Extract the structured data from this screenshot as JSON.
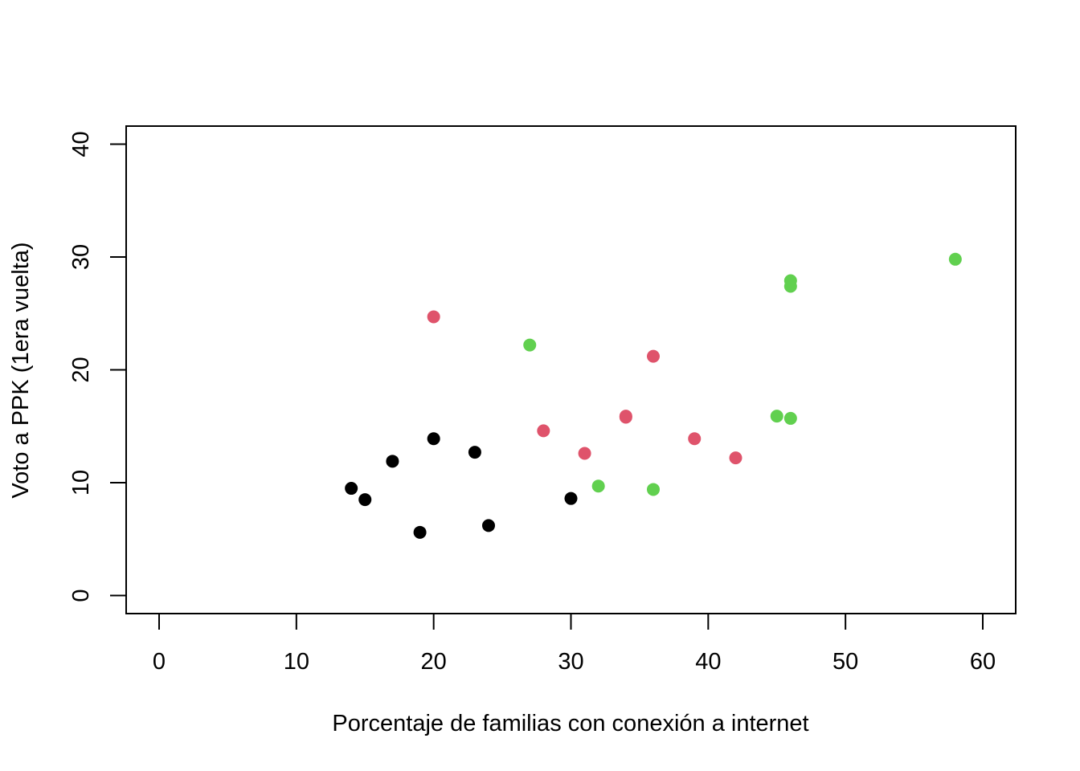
{
  "chart_data": {
    "type": "scatter",
    "title": "",
    "xlabel": "Porcentaje de familias con conexión a internet",
    "ylabel": "Voto a PPK (1era vuelta)",
    "xlim": [
      -2.4,
      62.4
    ],
    "ylim": [
      -1.6,
      41.6
    ],
    "x_ticks": [
      0,
      10,
      20,
      30,
      40,
      50,
      60
    ],
    "y_ticks": [
      0,
      10,
      20,
      30,
      40
    ],
    "grid": false,
    "legend": "none",
    "colors": [
      "#000000",
      "#DF536B",
      "#61D04F"
    ],
    "series": [
      {
        "color": "#000000",
        "points": [
          {
            "x": 14,
            "y": 9.5
          },
          {
            "x": 15,
            "y": 8.5
          },
          {
            "x": 17,
            "y": 11.9
          },
          {
            "x": 19,
            "y": 5.6
          },
          {
            "x": 20,
            "y": 13.9
          },
          {
            "x": 23,
            "y": 12.7
          },
          {
            "x": 24,
            "y": 6.2
          },
          {
            "x": 30,
            "y": 8.6
          }
        ]
      },
      {
        "color": "#DF536B",
        "points": [
          {
            "x": 20,
            "y": 24.7
          },
          {
            "x": 28,
            "y": 14.6
          },
          {
            "x": 31,
            "y": 12.6
          },
          {
            "x": 34,
            "y": 15.8
          },
          {
            "x": 34,
            "y": 15.9
          },
          {
            "x": 36,
            "y": 21.2
          },
          {
            "x": 39,
            "y": 13.9
          },
          {
            "x": 42,
            "y": 12.2
          }
        ]
      },
      {
        "color": "#61D04F",
        "points": [
          {
            "x": 27,
            "y": 22.2
          },
          {
            "x": 32,
            "y": 9.7
          },
          {
            "x": 36,
            "y": 9.4
          },
          {
            "x": 45,
            "y": 15.9
          },
          {
            "x": 46,
            "y": 15.7
          },
          {
            "x": 46,
            "y": 27.4
          },
          {
            "x": 46,
            "y": 27.9
          },
          {
            "x": 58,
            "y": 29.8
          }
        ]
      }
    ]
  }
}
